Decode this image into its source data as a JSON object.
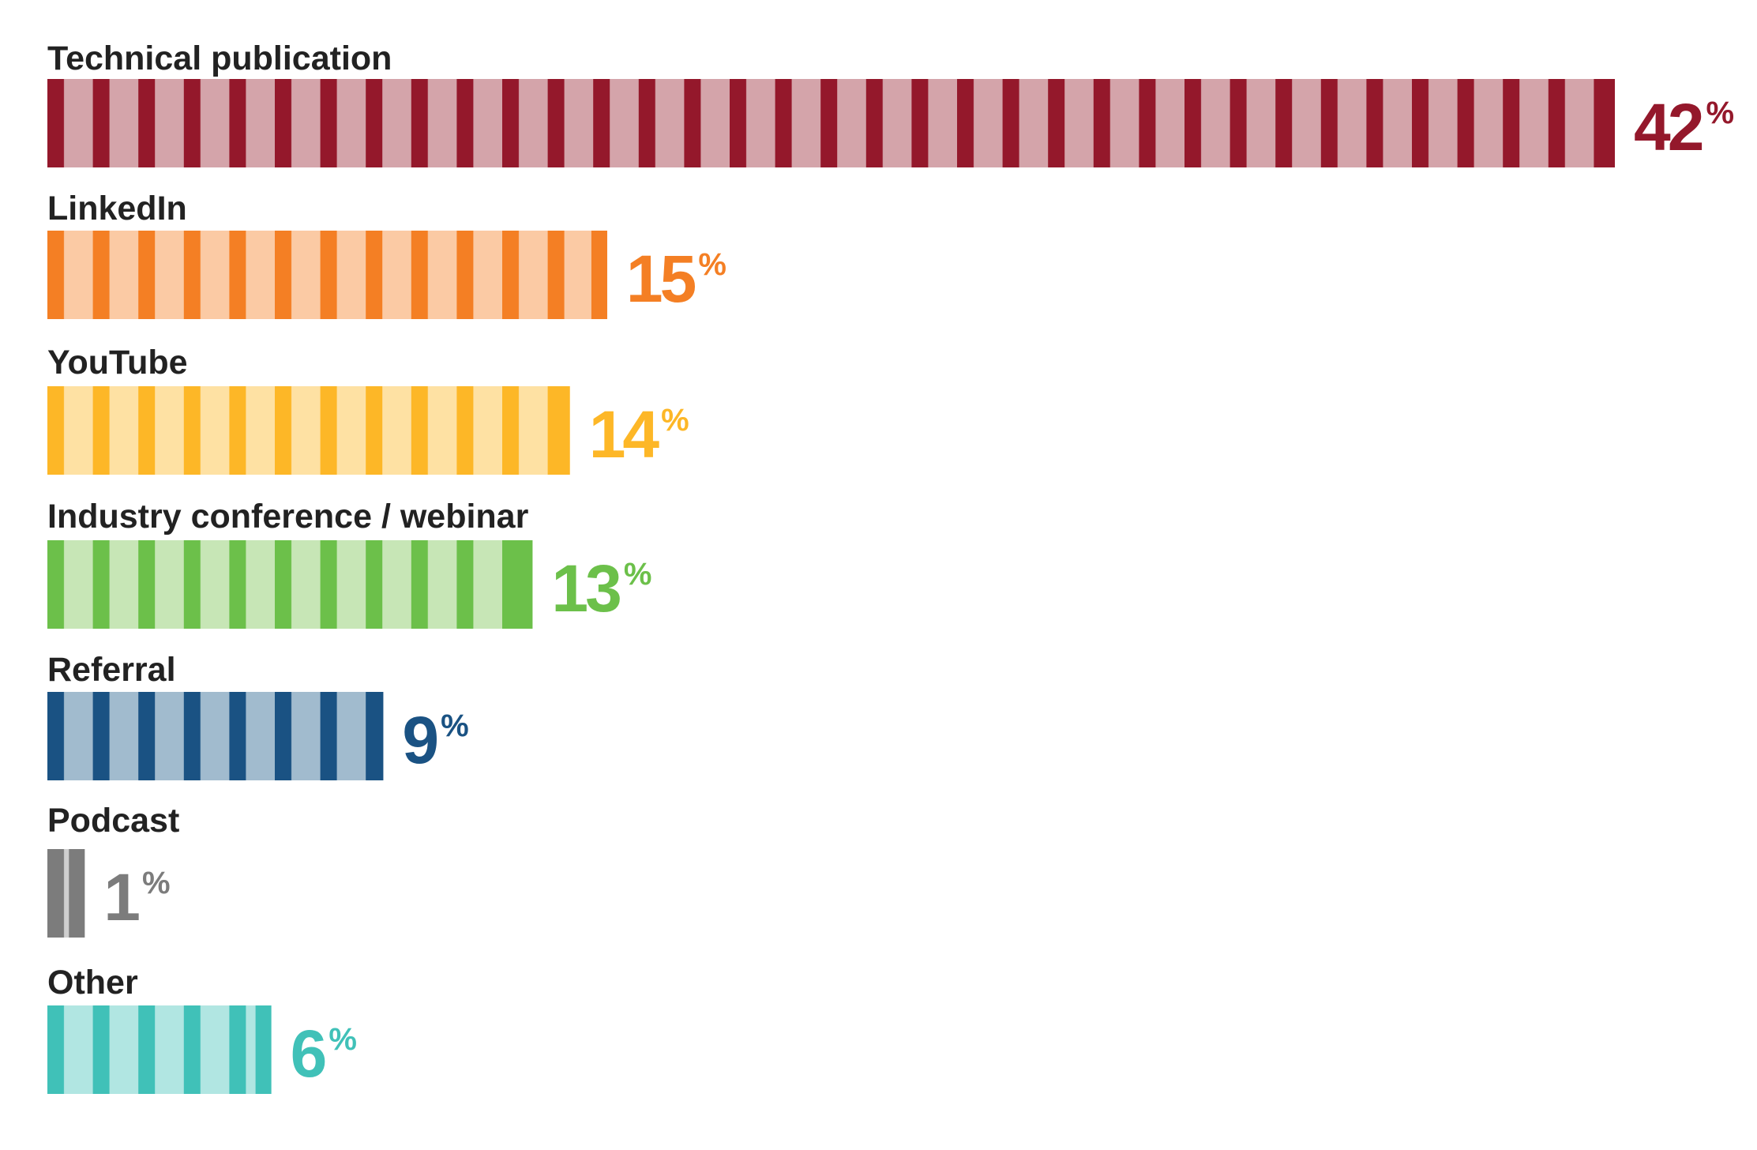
{
  "chart_data": {
    "type": "bar",
    "orientation": "horizontal",
    "categories": [
      "Technical publication",
      "LinkedIn",
      "YouTube",
      "Industry conference / webinar",
      "Referral",
      "Podcast",
      "Other"
    ],
    "values": [
      42,
      15,
      14,
      13,
      9,
      1,
      6
    ],
    "value_labels": [
      "42",
      "15",
      "14",
      "13",
      "9",
      "1",
      "6"
    ],
    "value_suffix": "%",
    "xlim": [
      0,
      42
    ],
    "grid": false,
    "legend": "none",
    "colors": [
      {
        "dark": "#94182b",
        "light": "#d4a4aa"
      },
      {
        "dark": "#f47f24",
        "light": "#fbcaa4"
      },
      {
        "dark": "#fdb727",
        "light": "#fee1a3"
      },
      {
        "dark": "#6cc04a",
        "light": "#c7e6b6"
      },
      {
        "dark": "#1a5283",
        "light": "#a1bbce"
      },
      {
        "dark": "#7c7c7c",
        "light": "#cfcfcf"
      },
      {
        "dark": "#40c1b8",
        "light": "#b1e6e2"
      }
    ]
  }
}
